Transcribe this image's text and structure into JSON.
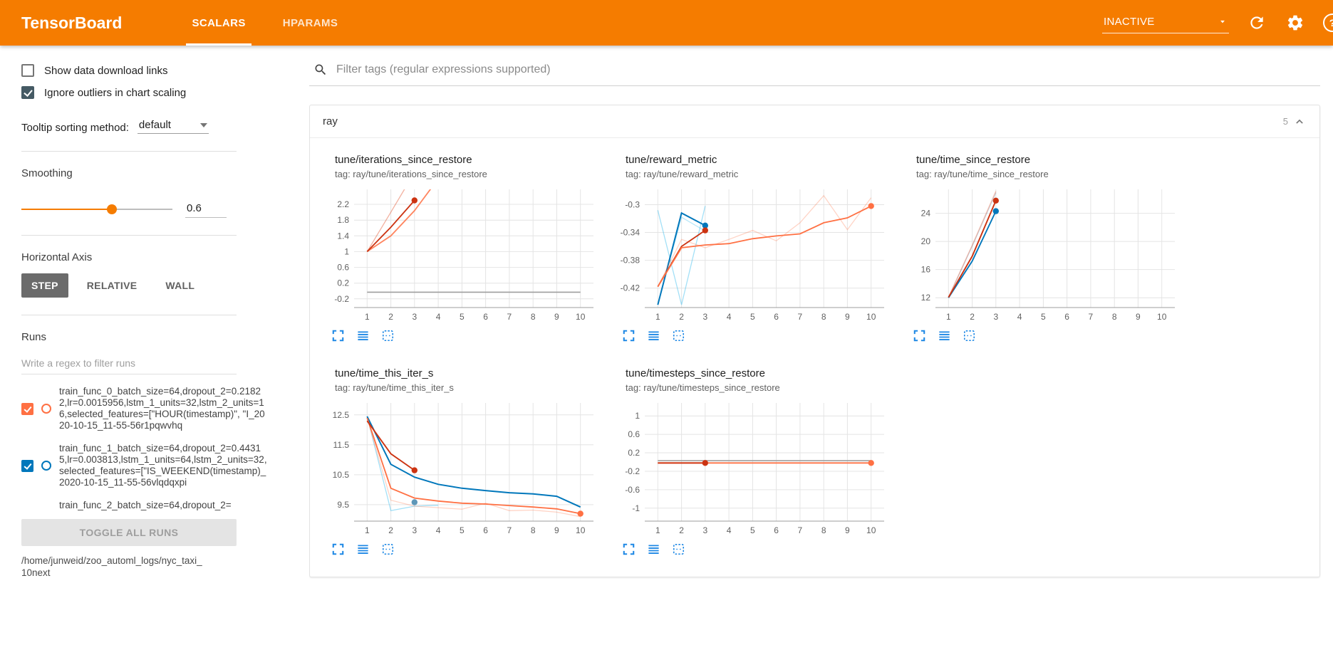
{
  "topbar": {
    "title": "TensorBoard",
    "tabs": [
      {
        "label": "SCALARS",
        "active": true
      },
      {
        "label": "HPARAMS",
        "active": false
      }
    ],
    "status": "INACTIVE"
  },
  "colors": {
    "topbar": "#f57c00",
    "icon_blue": "#1e88e5",
    "run_orange": "#ff7043",
    "run_blue": "#0077bb",
    "run_red": "#cc3311",
    "run_cyan": "#33bbee",
    "run_gray": "#9e9e9e",
    "checkbox_checked": "#455a64"
  },
  "icons": {
    "search": "magnifier",
    "refresh": "circular-arrow",
    "settings": "gear",
    "help": "question-circle",
    "dropdown_caret": "triangle-down",
    "collapse": "chevron-up",
    "expand_chart": "corner-brackets",
    "run_selector": "stacked-lines",
    "pin_chart": "dashed-box"
  },
  "sidebar": {
    "show_download": {
      "label": "Show data download links",
      "checked": false
    },
    "ignore_outliers": {
      "label": "Ignore outliers in chart scaling",
      "checked": true
    },
    "tooltip_sorting": {
      "label": "Tooltip sorting method:",
      "value": "default"
    },
    "smoothing": {
      "label": "Smoothing",
      "value": "0.6"
    },
    "horizontal_axis": {
      "label": "Horizontal Axis",
      "options": [
        "STEP",
        "RELATIVE",
        "WALL"
      ],
      "selected": "STEP"
    },
    "runs": {
      "label": "Runs",
      "filter_placeholder": "Write a regex to filter runs",
      "items": [
        {
          "name": "train_func_0_batch_size=64,dropout_2=0.21822,lr=0.0015956,lstm_1_units=32,lstm_2_units=16,selected_features=[\"HOUR(timestamp)\", \"I_2020-10-15_11-55-56r1pqwvhq",
          "checked": true,
          "color": "#ff7043"
        },
        {
          "name": "train_func_1_batch_size=64,dropout_2=0.44315,lr=0.003813,lstm_1_units=64,lstm_2_units=32,selected_features=[\"IS_WEEKEND(timestamp)_2020-10-15_11-55-56vlqdqxpi",
          "checked": true,
          "color": "#0077bb"
        },
        {
          "name": "train_func_2_batch_size=64,dropout_2=",
          "checked": true,
          "color": "#cc3311"
        }
      ],
      "toggle_all_label": "TOGGLE ALL RUNS",
      "logdir_line1": "/home/junweid/zoo_automl_logs/nyc_taxi_",
      "logdir_line2": "10next"
    }
  },
  "main": {
    "filter_placeholder": "Filter tags (regular expressions supported)",
    "section": {
      "title": "ray",
      "count": "5"
    }
  },
  "chart_data": [
    {
      "type": "line",
      "title": "tune/iterations_since_restore",
      "tag": "tag: ray/tune/iterations_since_restore",
      "x_ticks": [
        1,
        2,
        3,
        4,
        5,
        6,
        7,
        8,
        9,
        10
      ],
      "y_ticks": [
        -0.2,
        0.2,
        0.6,
        1,
        1.4,
        1.8,
        2.2
      ],
      "xlim": [
        0.45,
        10.55
      ],
      "ylim": [
        -0.42,
        2.58
      ],
      "series": [
        {
          "name": "run-orange-raw",
          "color": "#ff7043",
          "width": 1.3,
          "opacity": 0.25,
          "points": [
            [
              1,
              1
            ],
            [
              2,
              2
            ],
            [
              3,
              3
            ]
          ]
        },
        {
          "name": "run-red-raw",
          "color": "#cc3311",
          "width": 1.3,
          "opacity": 0.25,
          "points": [
            [
              1,
              1
            ],
            [
              2,
              2
            ],
            [
              3,
              3.02
            ]
          ]
        },
        {
          "name": "run-orange-smoothed",
          "color": "#ff7043",
          "width": 1.8,
          "opacity": 0.85,
          "points": [
            [
              1,
              1
            ],
            [
              2,
              1.4
            ],
            [
              3,
              2.04
            ],
            [
              4,
              2.85
            ]
          ]
        },
        {
          "name": "run-red-smoothed",
          "color": "#cc3311",
          "width": 1.8,
          "opacity": 1,
          "points": [
            [
              1,
              1
            ],
            [
              2,
              1.62
            ],
            [
              3,
              2.3
            ]
          ],
          "marker": true
        },
        {
          "name": "run-gray",
          "color": "#9e9e9e",
          "width": 1.6,
          "opacity": 1,
          "points": [
            [
              1,
              -0.03
            ],
            [
              10,
              -0.03
            ]
          ]
        }
      ]
    },
    {
      "type": "line",
      "title": "tune/reward_metric",
      "tag": "tag: ray/tune/reward_metric",
      "x_ticks": [
        1,
        2,
        3,
        4,
        5,
        6,
        7,
        8,
        9,
        10
      ],
      "y_ticks": [
        -0.42,
        -0.38,
        -0.34,
        -0.3
      ],
      "xlim": [
        0.45,
        10.55
      ],
      "ylim": [
        -0.448,
        -0.278
      ],
      "series": [
        {
          "name": "run-cyan-raw-a",
          "color": "#33bbee",
          "width": 1.3,
          "opacity": 0.45,
          "points": [
            [
              1,
              -0.308
            ],
            [
              2,
              -0.444
            ],
            [
              3,
              -0.302
            ]
          ]
        },
        {
          "name": "run-cyan-raw-b",
          "color": "#33bbee",
          "width": 1.3,
          "opacity": 0.35,
          "points": [
            [
              1,
              -0.444
            ],
            [
              2,
              -0.318
            ],
            [
              3,
              -0.338
            ]
          ]
        },
        {
          "name": "run-blue-smoothed",
          "color": "#0077bb",
          "width": 2,
          "opacity": 1,
          "points": [
            [
              1,
              -0.444
            ],
            [
              2,
              -0.312
            ],
            [
              3,
              -0.33
            ]
          ],
          "marker": true
        },
        {
          "name": "run-orange-raw",
          "color": "#ff7043",
          "width": 1.3,
          "opacity": 0.3,
          "points": [
            [
              1,
              -0.418
            ],
            [
              2,
              -0.35
            ],
            [
              3,
              -0.362
            ],
            [
              4,
              -0.35
            ],
            [
              5,
              -0.337
            ],
            [
              6,
              -0.352
            ],
            [
              7,
              -0.326
            ],
            [
              8,
              -0.287
            ],
            [
              9,
              -0.336
            ],
            [
              10,
              -0.29
            ]
          ]
        },
        {
          "name": "run-red-smoothed",
          "color": "#cc3311",
          "width": 1.8,
          "opacity": 1,
          "points": [
            [
              1,
              -0.418
            ],
            [
              2,
              -0.36
            ],
            [
              3,
              -0.337
            ]
          ],
          "marker": true
        },
        {
          "name": "run-orange-smoothed",
          "color": "#ff7043",
          "width": 1.8,
          "opacity": 1,
          "points": [
            [
              1,
              -0.418
            ],
            [
              2,
              -0.362
            ],
            [
              3,
              -0.358
            ],
            [
              4,
              -0.356
            ],
            [
              5,
              -0.349
            ],
            [
              6,
              -0.345
            ],
            [
              7,
              -0.342
            ],
            [
              8,
              -0.326
            ],
            [
              9,
              -0.319
            ],
            [
              10,
              -0.302
            ]
          ],
          "marker": true
        }
      ]
    },
    {
      "type": "line",
      "title": "tune/time_since_restore",
      "tag": "tag: ray/tune/time_since_restore",
      "x_ticks": [
        1,
        2,
        3,
        4,
        5,
        6,
        7,
        8,
        9,
        10
      ],
      "y_ticks": [
        12,
        16,
        20,
        24
      ],
      "xlim": [
        0.45,
        10.55
      ],
      "ylim": [
        10.6,
        27.4
      ],
      "series": [
        {
          "name": "run-blue-raw",
          "color": "#0077bb",
          "width": 1.3,
          "opacity": 0.2,
          "points": [
            [
              1,
              12
            ],
            [
              2,
              19.3
            ],
            [
              3,
              26.9
            ]
          ]
        },
        {
          "name": "run-orange-raw",
          "color": "#ff7043",
          "width": 1.3,
          "opacity": 0.25,
          "points": [
            [
              1,
              12.1
            ],
            [
              2,
              19.5
            ],
            [
              3,
              27.2
            ]
          ]
        },
        {
          "name": "run-red-raw",
          "color": "#cc3311",
          "width": 1.3,
          "opacity": 0.2,
          "points": [
            [
              1,
              12.05
            ],
            [
              2,
              19.4
            ],
            [
              3,
              27.05
            ]
          ]
        },
        {
          "name": "run-blue-smoothed",
          "color": "#0077bb",
          "width": 1.9,
          "opacity": 1,
          "points": [
            [
              1,
              12
            ],
            [
              2,
              17.2
            ],
            [
              3,
              24.3
            ]
          ],
          "marker": true
        },
        {
          "name": "run-red-smoothed",
          "color": "#cc3311",
          "width": 1.9,
          "opacity": 1,
          "points": [
            [
              1,
              12.05
            ],
            [
              2,
              17.9
            ],
            [
              3,
              25.8
            ]
          ],
          "marker": true
        }
      ]
    },
    {
      "type": "line",
      "title": "tune/time_this_iter_s",
      "tag": "tag: ray/tune/time_this_iter_s",
      "x_ticks": [
        1,
        2,
        3,
        4,
        5,
        6,
        7,
        8,
        9,
        10
      ],
      "y_ticks": [
        9.5,
        10.5,
        11.5,
        12.5
      ],
      "xlim": [
        0.45,
        10.55
      ],
      "ylim": [
        8.95,
        12.9
      ],
      "series": [
        {
          "name": "run-cyan-raw",
          "color": "#33bbee",
          "width": 1.3,
          "opacity": 0.45,
          "points": [
            [
              1,
              12.45
            ],
            [
              2,
              9.3
            ],
            [
              3,
              9.45
            ],
            [
              4,
              9.48
            ]
          ]
        },
        {
          "name": "run-orange-raw",
          "color": "#ff7043",
          "width": 1.3,
          "opacity": 0.3,
          "points": [
            [
              1,
              12.4
            ],
            [
              2,
              9.65
            ],
            [
              3,
              9.45
            ],
            [
              4,
              9.4
            ],
            [
              5,
              9.35
            ],
            [
              6,
              9.55
            ],
            [
              7,
              9.3
            ],
            [
              8,
              9.32
            ],
            [
              9,
              9.25
            ],
            [
              10,
              9.1
            ]
          ]
        },
        {
          "name": "run-blue-smoothed",
          "color": "#0077bb",
          "width": 2,
          "opacity": 1,
          "points": [
            [
              1,
              12.45
            ],
            [
              2,
              10.85
            ],
            [
              3,
              10.42
            ],
            [
              4,
              10.18
            ],
            [
              5,
              10.05
            ],
            [
              6,
              9.97
            ],
            [
              7,
              9.9
            ],
            [
              8,
              9.86
            ],
            [
              9,
              9.78
            ],
            [
              10,
              9.42
            ]
          ]
        },
        {
          "name": "run-orange-smoothed",
          "color": "#ff7043",
          "width": 1.8,
          "opacity": 1,
          "points": [
            [
              1,
              12.4
            ],
            [
              2,
              10.05
            ],
            [
              3,
              9.72
            ],
            [
              4,
              9.62
            ],
            [
              5,
              9.55
            ],
            [
              6,
              9.52
            ],
            [
              7,
              9.47
            ],
            [
              8,
              9.42
            ],
            [
              9,
              9.36
            ],
            [
              10,
              9.2
            ]
          ],
          "marker": true
        },
        {
          "name": "run-red-smoothed",
          "color": "#cc3311",
          "width": 1.9,
          "opacity": 1,
          "points": [
            [
              1,
              12.3
            ],
            [
              2,
              11.2
            ],
            [
              3,
              10.65
            ]
          ],
          "marker": true
        },
        {
          "name": "run-steel-endpoint",
          "color": "#5e97b8",
          "width": 0,
          "opacity": 1,
          "points": [
            [
              3,
              9.58
            ]
          ],
          "marker": true
        }
      ]
    },
    {
      "type": "line",
      "title": "tune/timesteps_since_restore",
      "tag": "tag: ray/tune/timesteps_since_restore",
      "x_ticks": [
        1,
        2,
        3,
        4,
        5,
        6,
        7,
        8,
        9,
        10
      ],
      "y_ticks": [
        1,
        0.6,
        0.2,
        -0.2,
        -0.6,
        -1
      ],
      "xlim": [
        0.45,
        10.55
      ],
      "ylim": [
        -1.28,
        1.28
      ],
      "series": [
        {
          "name": "run-gray",
          "color": "#9e9e9e",
          "width": 1.6,
          "opacity": 1,
          "points": [
            [
              1,
              0.03
            ],
            [
              10,
              0.03
            ]
          ]
        },
        {
          "name": "run-orange-smoothed",
          "color": "#ff7043",
          "width": 1.8,
          "opacity": 1,
          "points": [
            [
              1,
              -0.02
            ],
            [
              10,
              -0.02
            ]
          ],
          "marker": true
        },
        {
          "name": "run-red-smoothed",
          "color": "#cc3311",
          "width": 1.8,
          "opacity": 1,
          "points": [
            [
              1,
              -0.02
            ],
            [
              3,
              -0.02
            ]
          ],
          "marker": true
        }
      ]
    }
  ]
}
